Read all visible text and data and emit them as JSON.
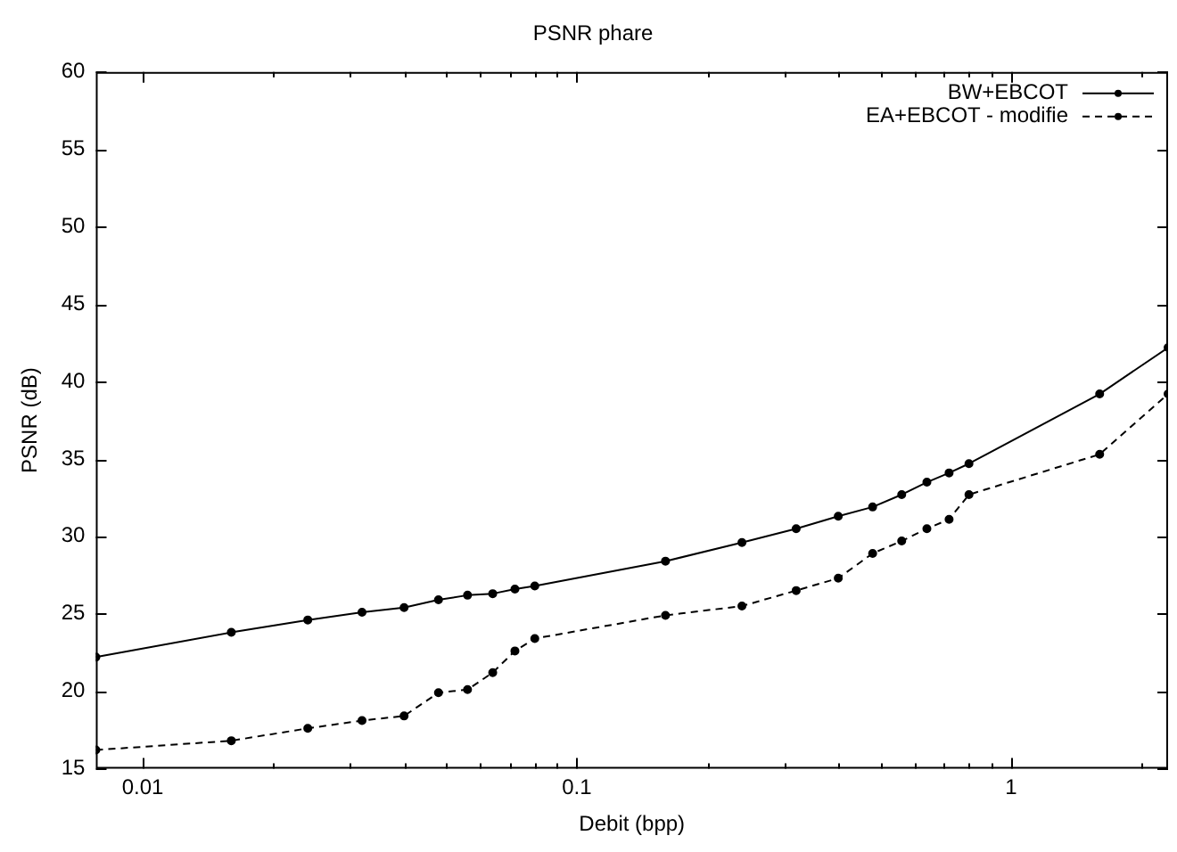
{
  "chart_data": {
    "type": "line",
    "title": "PSNR phare",
    "xlabel": "Debit (bpp)",
    "ylabel": "PSNR (dB)",
    "log": "x",
    "xlim": [
      0.0078,
      2.3
    ],
    "xticks": [
      0.01,
      {
        "value": 0.02,
        "label": null
      },
      {
        "value": 0.03,
        "label": null
      },
      {
        "value": 0.04,
        "label": null
      },
      {
        "value": 0.05,
        "label": null
      },
      {
        "value": 0.06,
        "label": null
      },
      {
        "value": 0.07,
        "label": null
      },
      {
        "value": 0.08,
        "label": null
      },
      {
        "value": 0.09,
        "label": null
      },
      0.1,
      {
        "value": 0.2,
        "label": null
      },
      {
        "value": 0.3,
        "label": null
      },
      {
        "value": 0.4,
        "label": null
      },
      {
        "value": 0.5,
        "label": null
      },
      {
        "value": 0.6,
        "label": null
      },
      {
        "value": 0.7,
        "label": null
      },
      {
        "value": 0.8,
        "label": null
      },
      {
        "value": 0.9,
        "label": null
      },
      1,
      {
        "value": 2,
        "label": null
      }
    ],
    "ylim": [
      15,
      60
    ],
    "yticks": [
      15,
      20,
      25,
      30,
      35,
      40,
      45,
      50,
      55,
      60
    ],
    "legend": "top right",
    "marker": "circle",
    "series": [
      {
        "name": "BW+EBCOT",
        "color": "#000000",
        "line_style": "solid",
        "x": [
          0.0078,
          0.016,
          0.024,
          0.032,
          0.04,
          0.048,
          0.056,
          0.064,
          0.072,
          0.08,
          0.16,
          0.24,
          0.32,
          0.4,
          0.48,
          0.56,
          0.64,
          0.72,
          0.8,
          1.6,
          2.3
        ],
        "values": [
          22.2,
          23.8,
          24.6,
          25.1,
          25.4,
          25.9,
          26.2,
          26.3,
          26.6,
          26.8,
          28.4,
          29.6,
          30.5,
          31.3,
          31.9,
          32.7,
          33.5,
          34.1,
          34.7,
          39.2,
          42.2
        ]
      },
      {
        "name": "EA+EBCOT - modifie",
        "color": "#000000",
        "line_style": "dashed",
        "x": [
          0.0078,
          0.016,
          0.024,
          0.032,
          0.04,
          0.048,
          0.056,
          0.064,
          0.072,
          0.08,
          0.16,
          0.24,
          0.32,
          0.4,
          0.48,
          0.56,
          0.64,
          0.72,
          0.8,
          1.6,
          2.3
        ],
        "values": [
          16.2,
          16.8,
          17.6,
          18.1,
          18.4,
          19.9,
          20.1,
          21.2,
          22.6,
          23.4,
          24.9,
          25.5,
          26.5,
          27.3,
          28.9,
          29.7,
          30.5,
          31.1,
          32.7,
          35.3,
          39.2
        ]
      }
    ]
  }
}
